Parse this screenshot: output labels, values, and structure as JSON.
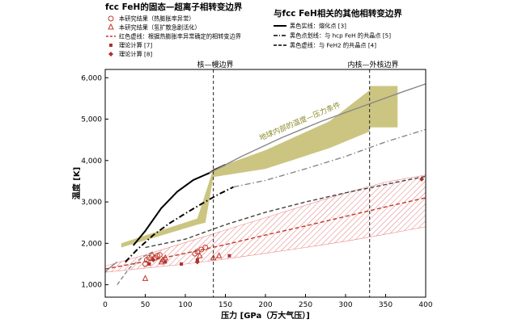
{
  "chart_data": {
    "type": "line",
    "xlabel": "压力 [GPa（万大气压）]",
    "ylabel": "温度 [K]",
    "xlim": [
      0,
      400
    ],
    "ylim": [
      700,
      6200
    ],
    "xticks": [
      0,
      50,
      100,
      150,
      200,
      250,
      300,
      350,
      400
    ],
    "yticks": [
      1000,
      2000,
      3000,
      4000,
      5000,
      6000
    ],
    "ytick_labels": [
      "1,000",
      "2,000",
      "3,000",
      "4,000",
      "5,000",
      "6,000"
    ],
    "grid": false,
    "legend_left": {
      "title": "fcc FeH的固态—超离子相转变边界",
      "items": [
        {
          "label": "本研究结果（热膨胀率异常）",
          "marker": "circle-open",
          "color": "#c0392b"
        },
        {
          "label": "本研究结果（氢扩散急剧活化）",
          "marker": "triangle-open",
          "color": "#c0392b"
        },
        {
          "label": "红色虚线：根据热膨胀率异常确定的相转变边界",
          "marker": "dashed-line",
          "color": "#c0392b"
        },
        {
          "label": "理论计算 [7]",
          "marker": "square",
          "color": "#b03030"
        },
        {
          "label": "理论计算 [8]",
          "marker": "diamond",
          "color": "#b03030"
        }
      ]
    },
    "legend_right": {
      "title": "与fcc FeH相关的其他相转变边界",
      "items": [
        {
          "label": "黑色实线：熔化点 [3]",
          "style": "solid"
        },
        {
          "label": "黑色点划线：与 hcp FeH 的共晶点 [5]",
          "style": "dashdot"
        },
        {
          "label": "黑色虚线：与 FeH2 的共晶点 [4]",
          "style": "dashed"
        }
      ]
    },
    "annotations": {
      "core_mantle": "核—幔边界",
      "inner_outer": "内核—外核边界",
      "geotherm": "地球内部的温度—压力条件"
    },
    "boundaries": {
      "core_mantle": 135,
      "inner_outer": 330
    },
    "series": [
      {
        "name": "黑色实线：熔化点 [3]",
        "style": "solid",
        "color": "#000000",
        "x": [
          35,
          50,
          70,
          90,
          110,
          130,
          135,
          150
        ],
        "y": [
          1950,
          2300,
          2850,
          3250,
          3530,
          3700,
          3760,
          3900
        ]
      },
      {
        "name": "黑色点划线：与 hcp FeH 的共晶点 [5]",
        "style": "dashdot",
        "color": "#000000",
        "x": [
          25,
          40,
          60,
          80,
          100,
          120,
          140,
          160
        ],
        "y": [
          1550,
          1850,
          2200,
          2480,
          2720,
          2950,
          3170,
          3360
        ]
      },
      {
        "name": "gray-dashdot-extension",
        "style": "dashdot",
        "color": "#888888",
        "x": [
          160,
          200,
          250,
          300,
          350,
          400
        ],
        "y": [
          3360,
          3520,
          3800,
          4100,
          4450,
          4750
        ]
      },
      {
        "name": "黑色虚线：与 FeH2 的共晶点 [4]",
        "style": "dashed",
        "color": "#444444",
        "x": [
          50,
          100,
          150,
          200,
          250,
          300,
          350,
          400
        ],
        "y": [
          1900,
          2100,
          2450,
          2750,
          3000,
          3220,
          3420,
          3620
        ]
      },
      {
        "name": "gray-dashed-lower",
        "style": "dashed",
        "color": "#888888",
        "x": [
          15,
          30,
          45,
          60
        ],
        "y": [
          1000,
          1400,
          1650,
          1800
        ]
      },
      {
        "name": "gray-solid-upper",
        "style": "solid",
        "color": "#888888",
        "x": [
          130,
          170,
          220,
          270,
          320,
          370,
          400
        ],
        "y": [
          3700,
          4100,
          4550,
          4950,
          5300,
          5650,
          5850
        ]
      },
      {
        "name": "gray-solid-lower",
        "style": "solid",
        "color": "#888888",
        "x": [
          0,
          5,
          15
        ],
        "y": [
          1300,
          1400,
          1550
        ]
      },
      {
        "name": "红色虚线：根据热膨胀率异常确定的相转变边界",
        "style": "dashed",
        "color": "#c0392b",
        "x": [
          0,
          50,
          100,
          150,
          200,
          250,
          300,
          350,
          400
        ],
        "y": [
          1380,
          1560,
          1760,
          1970,
          2200,
          2420,
          2650,
          2880,
          3100
        ]
      }
    ],
    "uncertainty_band": {
      "x": [
        0,
        50,
        100,
        150,
        200,
        250,
        300,
        350,
        400
      ],
      "y_low": [
        1300,
        1400,
        1500,
        1620,
        1760,
        1900,
        2050,
        2220,
        2400
      ],
      "y_high": [
        1450,
        1720,
        2020,
        2320,
        2620,
        2920,
        3220,
        3480,
        3650
      ]
    },
    "geotherm_band": {
      "x_upper": [
        20,
        115,
        135,
        200,
        280,
        330,
        330,
        365
      ],
      "y_upper": [
        2000,
        2600,
        3800,
        4250,
        4950,
        5700,
        5800,
        5800
      ],
      "x_lower": [
        365,
        330,
        330,
        280,
        200,
        135,
        125,
        115,
        20
      ],
      "y_lower": [
        4800,
        4800,
        4700,
        4300,
        3800,
        3600,
        2500,
        2450,
        1900
      ]
    },
    "points_this_study_circle": {
      "x": [
        50,
        52,
        55,
        58,
        62,
        65,
        68,
        112,
        115,
        120,
        125
      ],
      "y": [
        1500,
        1600,
        1650,
        1700,
        1650,
        1700,
        1720,
        1750,
        1800,
        1850,
        1900
      ]
    },
    "points_this_study_triangle": {
      "x": [
        50,
        70,
        72,
        75,
        118,
        135,
        142
      ],
      "y": [
        1150,
        1550,
        1600,
        1650,
        1700,
        1650,
        1700
      ]
    },
    "points_theory_7": {
      "x": [
        55,
        75,
        95,
        115,
        155
      ],
      "y": [
        1500,
        1550,
        1500,
        1600,
        1700
      ]
    },
    "points_theory_8": {
      "x": [
        60,
        115,
        395
      ],
      "y": [
        1600,
        1550,
        3550
      ]
    }
  }
}
